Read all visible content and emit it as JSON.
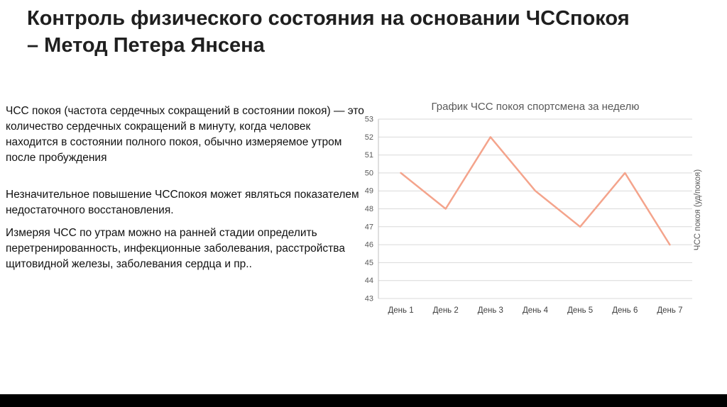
{
  "slide": {
    "title": "Контроль физического состояния на основании ЧССпокоя – Метод Петера Янсена",
    "paragraphs": [
      "ЧСС покоя (частота сердечных сокращений в состоянии покоя) — это количество сердечных сокращений в минуту, когда человек находится в состоянии полного покоя, обычно измеряемое утром после пробуждения",
      "Незначительное повышение ЧССпокоя может являться показателем недостаточного восстановления.",
      "Измеряя ЧСС по утрам можно на ранней стадии определить перетренированность, инфекционные заболевания, расстройства щитовидной железы, заболевания сердца и пр.."
    ]
  },
  "chart_data": {
    "type": "line",
    "title": "График ЧСС покоя спортсмена за неделю",
    "categories": [
      "День 1",
      "День 2",
      "День 3",
      "День 4",
      "День 5",
      "День 6",
      "День 7"
    ],
    "series": [
      {
        "name": "ЧСС покоя",
        "values": [
          50,
          48,
          52,
          49,
          47,
          50,
          46
        ]
      }
    ],
    "ylim": [
      43,
      53
    ],
    "ytick_step": 1,
    "right_axis_label": "ЧСС покоя (уд/покоя)",
    "line_color": "#f4a48c",
    "grid": true,
    "legend": "none",
    "markers": "none"
  }
}
